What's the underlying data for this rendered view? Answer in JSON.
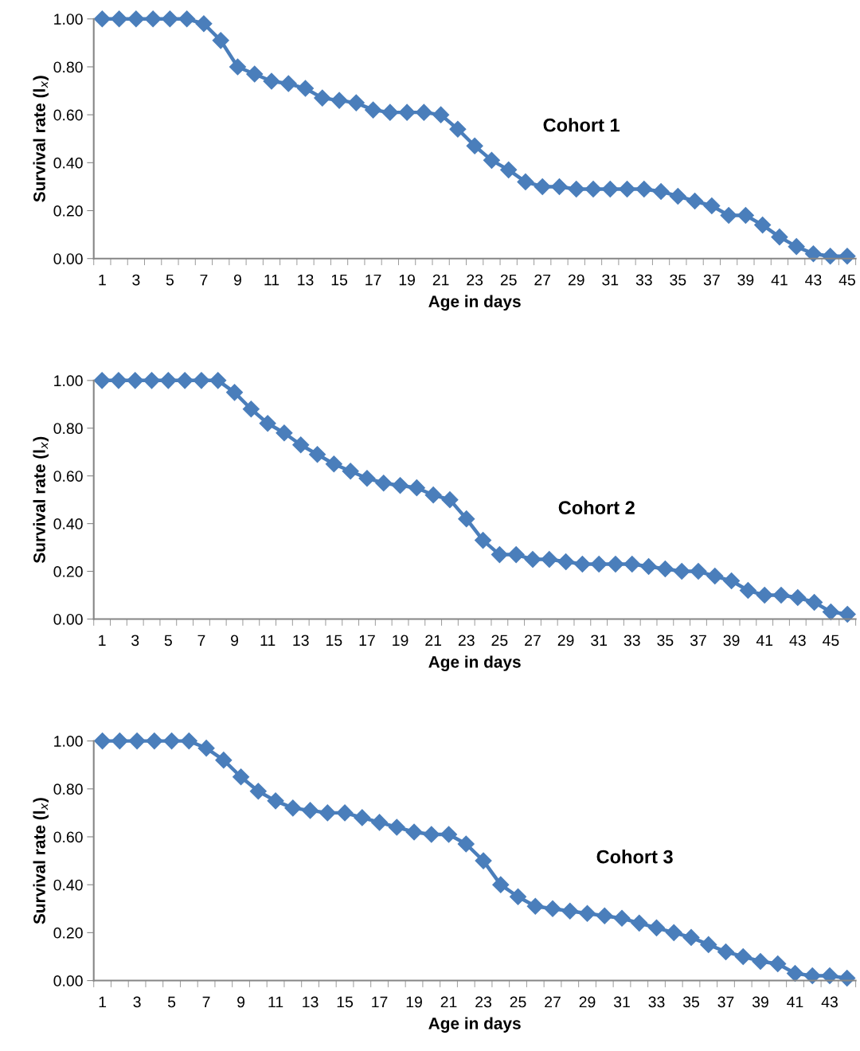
{
  "chart_data": [
    {
      "type": "line",
      "xlabel": "Age in days",
      "ylabel": "Survival rate (l$_{x}$)",
      "annotations": [
        "Cohort 1"
      ],
      "categories": [
        "1",
        null,
        "3",
        null,
        "5",
        null,
        "7",
        null,
        "9",
        null,
        "11",
        null,
        "13",
        null,
        "15",
        null,
        "17",
        null,
        "19",
        null,
        "21",
        null,
        "23",
        null,
        "25",
        null,
        "27",
        null,
        "29",
        null,
        "31",
        null,
        "33",
        null,
        "35",
        null,
        "37",
        null,
        "39",
        null,
        "41",
        null,
        "43",
        null,
        "45"
      ],
      "series": [
        {
          "color": "#4a7ebb",
          "values": [
            1.0,
            1.0,
            1.0,
            1.0,
            1.0,
            1.0,
            0.98,
            0.91,
            0.8,
            0.77,
            0.74,
            0.73,
            0.71,
            0.67,
            0.66,
            0.65,
            0.62,
            0.61,
            0.61,
            0.61,
            0.6,
            0.54,
            0.47,
            0.41,
            0.37,
            0.32,
            0.3,
            0.3,
            0.29,
            0.29,
            0.29,
            0.29,
            0.29,
            0.28,
            0.26,
            0.24,
            0.22,
            0.18,
            0.18,
            0.14,
            0.09,
            0.05,
            0.02,
            0.01,
            0.01
          ]
        }
      ],
      "ylim": [
        0,
        1
      ],
      "yticks": [
        {
          "value": 0,
          "label": "0.00"
        },
        {
          "value": 0.2,
          "label": "0.20"
        },
        {
          "value": 0.4,
          "label": "0.40"
        },
        {
          "value": 0.6,
          "label": "0.60"
        },
        {
          "value": 0.8,
          "label": "0.80"
        },
        {
          "value": 1,
          "label": "1.00"
        }
      ],
      "grid": false,
      "legend": false,
      "marker": "diamond",
      "line_style": "solid"
    },
    {
      "type": "line",
      "xlabel": "Age in days",
      "ylabel": "Survival rate (l$_{x}$)",
      "annotations": [
        "Cohort 2"
      ],
      "categories": [
        "1",
        null,
        "3",
        null,
        "5",
        null,
        "7",
        null,
        "9",
        null,
        "11",
        null,
        "13",
        null,
        "15",
        null,
        "17",
        null,
        "19",
        null,
        "21",
        null,
        "23",
        null,
        "25",
        null,
        "27",
        null,
        "29",
        null,
        "31",
        null,
        "33",
        null,
        "35",
        null,
        "37",
        null,
        "39",
        null,
        "41",
        null,
        "43",
        null,
        "45",
        null
      ],
      "series": [
        {
          "color": "#4a7ebb",
          "values": [
            1.0,
            1.0,
            1.0,
            1.0,
            1.0,
            1.0,
            1.0,
            1.0,
            0.95,
            0.88,
            0.82,
            0.78,
            0.73,
            0.69,
            0.65,
            0.62,
            0.59,
            0.57,
            0.56,
            0.55,
            0.52,
            0.5,
            0.42,
            0.33,
            0.27,
            0.27,
            0.25,
            0.25,
            0.24,
            0.23,
            0.23,
            0.23,
            0.23,
            0.22,
            0.21,
            0.2,
            0.2,
            0.18,
            0.16,
            0.12,
            0.1,
            0.1,
            0.09,
            0.07,
            0.03,
            0.02
          ]
        }
      ],
      "ylim": [
        0,
        1
      ],
      "yticks": [
        {
          "value": 0,
          "label": "0.00"
        },
        {
          "value": 0.2,
          "label": "0.20"
        },
        {
          "value": 0.4,
          "label": "0.40"
        },
        {
          "value": 0.6,
          "label": "0.60"
        },
        {
          "value": 0.8,
          "label": "0.80"
        },
        {
          "value": 1,
          "label": "1.00"
        }
      ],
      "grid": false,
      "legend": false,
      "marker": "diamond",
      "line_style": "solid"
    },
    {
      "type": "line",
      "xlabel": "Age in days",
      "ylabel": "Survival rate (l$_{x}$)",
      "annotations": [
        "Cohort 3"
      ],
      "categories": [
        "1",
        null,
        "3",
        null,
        "5",
        null,
        "7",
        null,
        "9",
        null,
        "11",
        null,
        "13",
        null,
        "15",
        null,
        "17",
        null,
        "19",
        null,
        "21",
        null,
        "23",
        null,
        "25",
        null,
        "27",
        null,
        "29",
        null,
        "31",
        null,
        "33",
        null,
        "35",
        null,
        "37",
        null,
        "39",
        null,
        "41",
        null,
        "43",
        null
      ],
      "series": [
        {
          "color": "#4a7ebb",
          "values": [
            1.0,
            1.0,
            1.0,
            1.0,
            1.0,
            1.0,
            0.97,
            0.92,
            0.85,
            0.79,
            0.75,
            0.72,
            0.71,
            0.7,
            0.7,
            0.68,
            0.66,
            0.64,
            0.62,
            0.61,
            0.61,
            0.57,
            0.5,
            0.4,
            0.35,
            0.31,
            0.3,
            0.29,
            0.28,
            0.27,
            0.26,
            0.24,
            0.22,
            0.2,
            0.18,
            0.15,
            0.12,
            0.1,
            0.08,
            0.07,
            0.03,
            0.02,
            0.02,
            0.01
          ]
        }
      ],
      "ylim": [
        0,
        1
      ],
      "yticks": [
        {
          "value": 0,
          "label": "0.00"
        },
        {
          "value": 0.2,
          "label": "0.20"
        },
        {
          "value": 0.4,
          "label": "0.40"
        },
        {
          "value": 0.6,
          "label": "0.60"
        },
        {
          "value": 0.8,
          "label": "0.80"
        },
        {
          "value": 1,
          "label": "1.00"
        }
      ],
      "grid": false,
      "legend": false,
      "marker": "diamond",
      "line_style": "solid"
    }
  ]
}
